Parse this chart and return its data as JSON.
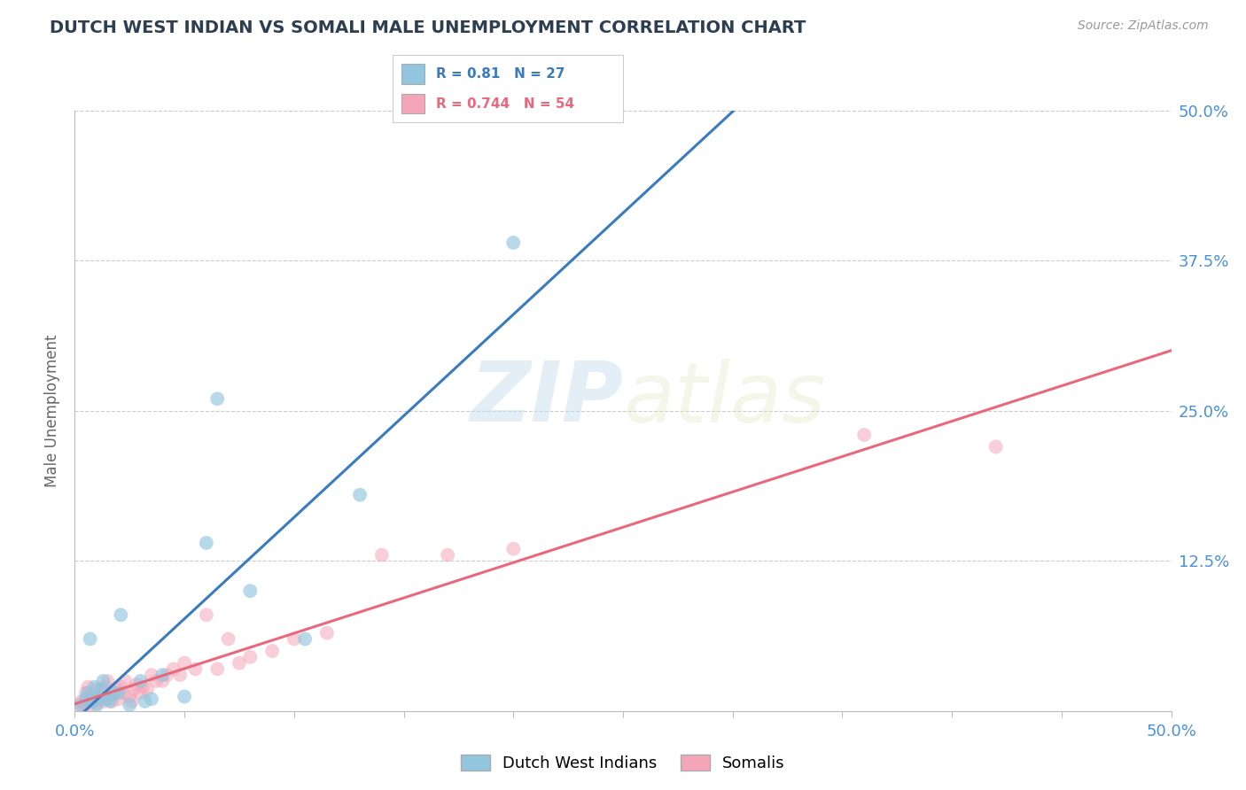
{
  "title": "DUTCH WEST INDIAN VS SOMALI MALE UNEMPLOYMENT CORRELATION CHART",
  "source_text": "Source: ZipAtlas.com",
  "ylabel": "Male Unemployment",
  "xlim": [
    0.0,
    0.5
  ],
  "ylim": [
    0.0,
    0.5
  ],
  "xticks": [
    0.0,
    0.05,
    0.1,
    0.15,
    0.2,
    0.25,
    0.3,
    0.35,
    0.4,
    0.45,
    0.5
  ],
  "xticklabels": [
    "0.0%",
    "",
    "",
    "",
    "",
    "",
    "",
    "",
    "",
    "",
    "50.0%"
  ],
  "yticks": [
    0.0,
    0.125,
    0.25,
    0.375,
    0.5
  ],
  "right_yticklabels": [
    "",
    "12.5%",
    "25.0%",
    "37.5%",
    "50.0%"
  ],
  "blue_color": "#92c5de",
  "pink_color": "#f4a6b8",
  "blue_line_color": "#3a7bbf",
  "pink_line_color": "#e8697d",
  "R_blue": 0.81,
  "N_blue": 27,
  "R_pink": 0.744,
  "N_pink": 54,
  "legend_label_blue": "Dutch West Indians",
  "legend_label_pink": "Somalis",
  "watermark_zip": "ZIP",
  "watermark_atlas": "atlas",
  "background_color": "#ffffff",
  "title_color": "#2c3e50",
  "axis_label_color": "#666666",
  "tick_color": "#4a90d9",
  "grid_color": "#cccccc",
  "blue_scatter_x": [
    0.003,
    0.005,
    0.006,
    0.007,
    0.008,
    0.009,
    0.01,
    0.011,
    0.012,
    0.013,
    0.015,
    0.016,
    0.018,
    0.02,
    0.021,
    0.025,
    0.03,
    0.032,
    0.035,
    0.04,
    0.05,
    0.06,
    0.065,
    0.08,
    0.105,
    0.13,
    0.2
  ],
  "blue_scatter_y": [
    0.005,
    0.01,
    0.015,
    0.06,
    0.008,
    0.02,
    0.005,
    0.012,
    0.018,
    0.025,
    0.01,
    0.008,
    0.015,
    0.015,
    0.08,
    0.005,
    0.025,
    0.008,
    0.01,
    0.03,
    0.012,
    0.14,
    0.26,
    0.1,
    0.06,
    0.18,
    0.39
  ],
  "pink_scatter_x": [
    0.002,
    0.003,
    0.004,
    0.005,
    0.005,
    0.006,
    0.006,
    0.007,
    0.008,
    0.009,
    0.01,
    0.01,
    0.011,
    0.012,
    0.013,
    0.014,
    0.015,
    0.015,
    0.016,
    0.017,
    0.018,
    0.019,
    0.02,
    0.021,
    0.022,
    0.023,
    0.025,
    0.026,
    0.027,
    0.028,
    0.03,
    0.031,
    0.033,
    0.035,
    0.037,
    0.04,
    0.042,
    0.045,
    0.048,
    0.05,
    0.055,
    0.06,
    0.065,
    0.07,
    0.075,
    0.08,
    0.09,
    0.1,
    0.115,
    0.14,
    0.17,
    0.2,
    0.36,
    0.42
  ],
  "pink_scatter_y": [
    0.005,
    0.008,
    0.003,
    0.007,
    0.015,
    0.01,
    0.02,
    0.005,
    0.008,
    0.012,
    0.006,
    0.018,
    0.01,
    0.015,
    0.008,
    0.02,
    0.01,
    0.025,
    0.012,
    0.008,
    0.015,
    0.018,
    0.01,
    0.02,
    0.015,
    0.025,
    0.012,
    0.008,
    0.018,
    0.022,
    0.015,
    0.02,
    0.018,
    0.03,
    0.025,
    0.025,
    0.03,
    0.035,
    0.03,
    0.04,
    0.035,
    0.08,
    0.035,
    0.06,
    0.04,
    0.045,
    0.05,
    0.06,
    0.065,
    0.13,
    0.13,
    0.135,
    0.23,
    0.22
  ]
}
